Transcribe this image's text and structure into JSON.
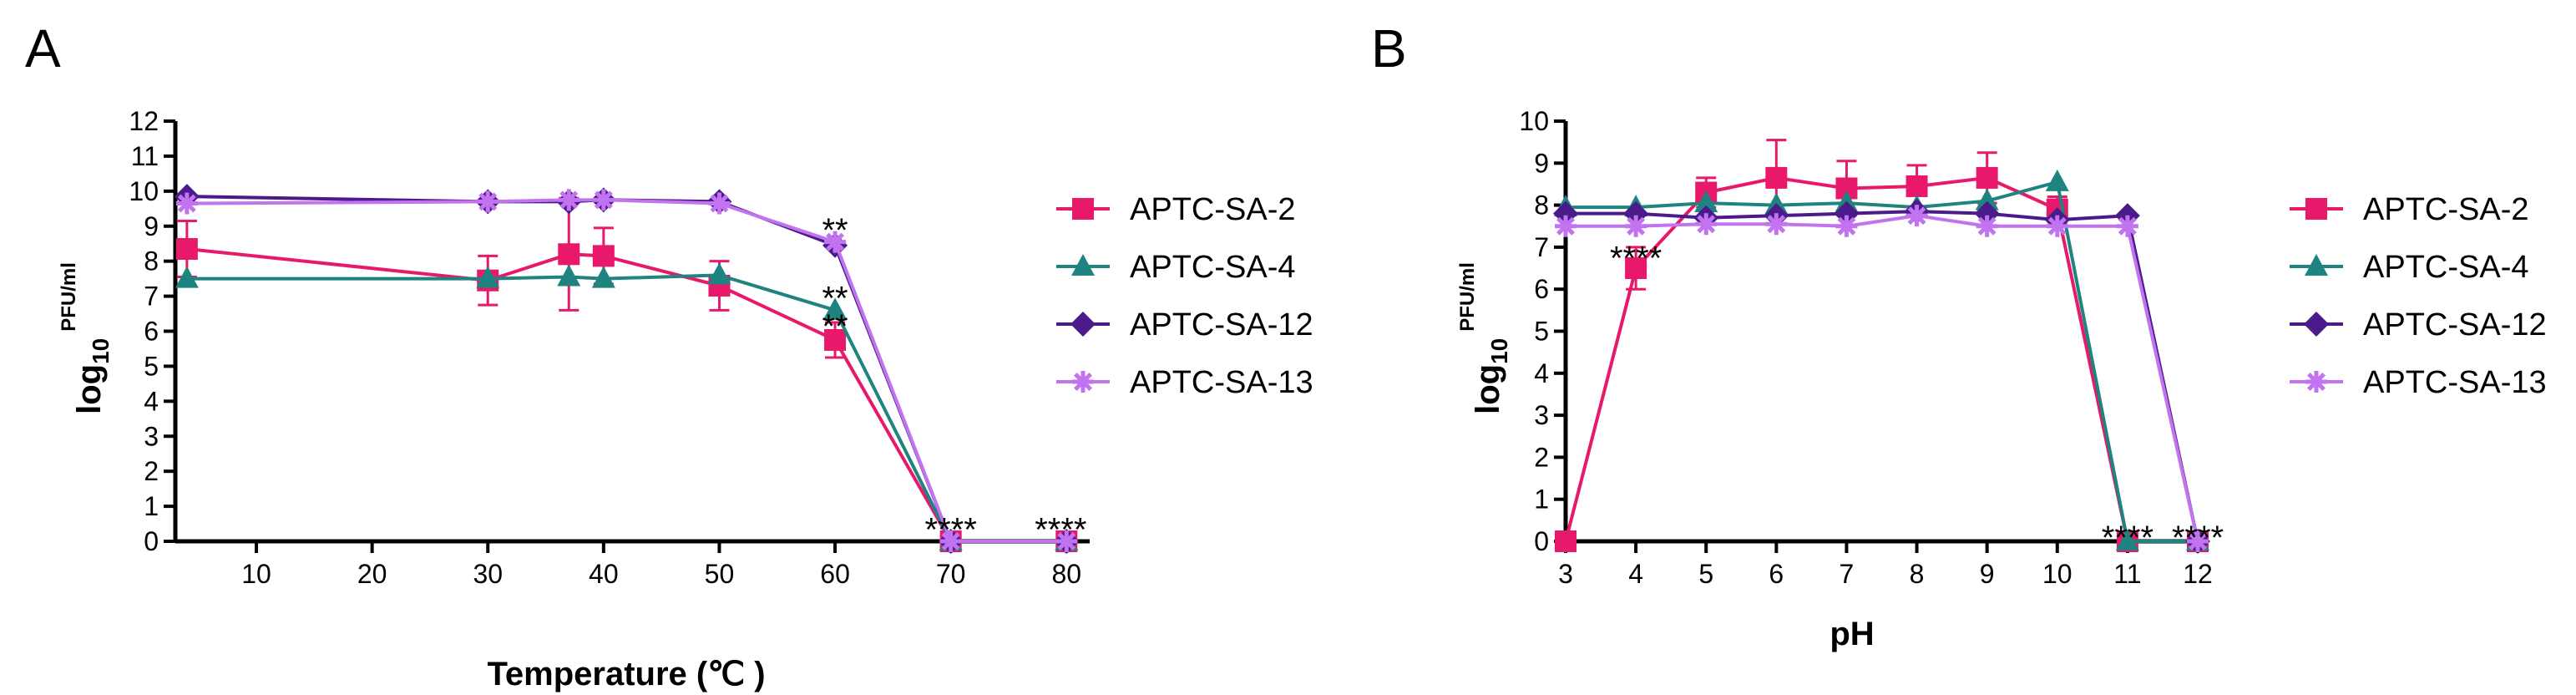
{
  "chart_data": [
    {
      "type": "line",
      "panel": "A",
      "xlabel": "Temperature (℃ )",
      "ylabel": "log",
      "ylabel_sub": "10",
      "ylabel_sup": "PFU/ml",
      "xlim": [
        3,
        82
      ],
      "ylim": [
        0,
        12
      ],
      "x_ticks": [
        10,
        20,
        30,
        40,
        50,
        60,
        70,
        80
      ],
      "y_ticks": [
        0,
        1,
        2,
        3,
        4,
        5,
        6,
        7,
        8,
        9,
        10,
        11,
        12
      ],
      "x": [
        4,
        30,
        37,
        40,
        50,
        60,
        70,
        80
      ],
      "series": [
        {
          "name": "APTC-SA-2",
          "color": "#e8196b",
          "marker": "square",
          "values": [
            8.35,
            7.45,
            8.2,
            8.15,
            7.3,
            5.75,
            0,
            0
          ],
          "errors": [
            0.8,
            0.7,
            1.6,
            0.8,
            0.7,
            0.5,
            0,
            0
          ]
        },
        {
          "name": "APTC-SA-4",
          "color": "#1f847f",
          "marker": "triangle",
          "values": [
            7.5,
            7.5,
            7.55,
            7.5,
            7.6,
            6.6,
            0,
            0
          ],
          "errors": [
            0,
            0,
            0,
            0,
            0,
            0,
            0,
            0
          ]
        },
        {
          "name": "APTC-SA-12",
          "color": "#4b1a8b",
          "marker": "diamond",
          "values": [
            9.85,
            9.7,
            9.7,
            9.75,
            9.7,
            8.45,
            0,
            0
          ],
          "errors": [
            0,
            0,
            0,
            0,
            0,
            0,
            0,
            0
          ]
        },
        {
          "name": "APTC-SA-13",
          "color": "#c173f0",
          "marker": "star",
          "values": [
            9.65,
            9.7,
            9.75,
            9.75,
            9.65,
            8.55,
            0,
            0
          ],
          "errors": [
            0,
            0,
            0,
            0,
            0,
            0,
            0,
            0
          ]
        }
      ],
      "annotations": [
        {
          "text": "**",
          "x": 60,
          "y": 8.9
        },
        {
          "text": "**",
          "x": 60,
          "y": 6.95
        },
        {
          "text": "**",
          "x": 60,
          "y": 6.15
        },
        {
          "text": "****",
          "x": 70,
          "y": 0.35
        },
        {
          "text": "****",
          "x": 79.5,
          "y": 0.35
        }
      ],
      "legend": "right"
    },
    {
      "type": "line",
      "panel": "B",
      "xlabel": "pH",
      "ylabel": "log",
      "ylabel_sub": "10",
      "ylabel_sup": "PFU/ml",
      "xlim": [
        3,
        12
      ],
      "ylim": [
        0,
        10
      ],
      "x_ticks": [
        3,
        4,
        5,
        6,
        7,
        8,
        9,
        10,
        11,
        12
      ],
      "y_ticks": [
        0,
        1,
        2,
        3,
        4,
        5,
        6,
        7,
        8,
        9,
        10
      ],
      "x": [
        3,
        4,
        5,
        6,
        7,
        8,
        9,
        10,
        11,
        12
      ],
      "series": [
        {
          "name": "APTC-SA-2",
          "color": "#e8196b",
          "marker": "square",
          "values": [
            0,
            6.5,
            8.3,
            8.65,
            8.4,
            8.45,
            8.65,
            7.9,
            0,
            0
          ],
          "errors": [
            0,
            0.5,
            0.35,
            0.9,
            0.65,
            0.5,
            0.6,
            0.3,
            0,
            0
          ]
        },
        {
          "name": "APTC-SA-4",
          "color": "#1f847f",
          "marker": "triangle",
          "values": [
            7.95,
            7.95,
            8.05,
            8.0,
            8.05,
            7.95,
            8.1,
            8.55,
            0,
            0
          ],
          "errors": [
            0,
            0,
            0,
            0,
            0,
            0,
            0,
            0,
            0,
            0
          ]
        },
        {
          "name": "APTC-SA-12",
          "color": "#4b1a8b",
          "marker": "diamond",
          "values": [
            7.8,
            7.8,
            7.7,
            7.75,
            7.8,
            7.85,
            7.8,
            7.65,
            7.75,
            0
          ],
          "errors": [
            0,
            0,
            0,
            0,
            0,
            0,
            0,
            0,
            0,
            0
          ]
        },
        {
          "name": "APTC-SA-13",
          "color": "#c173f0",
          "marker": "star",
          "values": [
            7.5,
            7.5,
            7.55,
            7.55,
            7.5,
            7.75,
            7.5,
            7.5,
            7.5,
            0
          ],
          "errors": [
            0,
            0,
            0,
            0,
            0,
            0,
            0,
            0,
            0,
            0
          ]
        }
      ],
      "annotations": [
        {
          "text": "****",
          "x": 4,
          "y": 6.75
        },
        {
          "text": "****",
          "x": 11,
          "y": 0.1
        },
        {
          "text": "****",
          "x": 12,
          "y": 0.1
        }
      ],
      "legend": "right"
    }
  ]
}
